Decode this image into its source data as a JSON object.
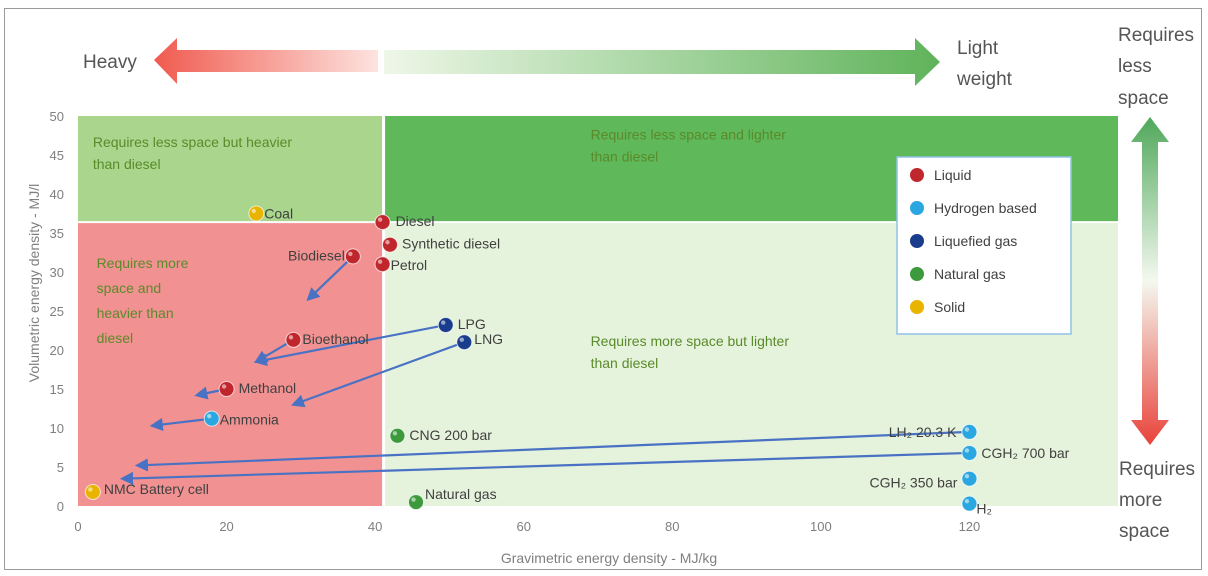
{
  "chart_data": {
    "type": "scatter",
    "xlabel": "Gravimetric energy density - MJ/kg",
    "ylabel": "Volumetric energy density - MJ/l",
    "xlim": [
      0,
      140
    ],
    "ylim": [
      0,
      50
    ],
    "x_ticks": [
      "0",
      "20",
      "40",
      "60",
      "80",
      "100",
      "120"
    ],
    "y_ticks": [
      "0",
      "5",
      "10",
      "15",
      "20",
      "25",
      "30",
      "35",
      "40",
      "45",
      "50"
    ],
    "grid": false,
    "legend_position": "top-right",
    "legend": [
      {
        "name": "Liquid",
        "color": "#c0272d"
      },
      {
        "name": "Hydrogen based",
        "color": "#2aa6e0"
      },
      {
        "name": "Liquefied gas",
        "color": "#1a3c8c"
      },
      {
        "name": "Natural gas",
        "color": "#3c9a3c"
      },
      {
        "name": "Solid",
        "color": "#e8b400"
      }
    ],
    "regions": [
      {
        "label": "Requires less space but heavier than diesel",
        "lines": [
          "Requires less space but heavier",
          "than diesel"
        ],
        "x": [
          0,
          41
        ],
        "y": [
          36.4,
          50
        ],
        "color": "#a9d68c"
      },
      {
        "label": "Requires less space and lighter than diesel",
        "lines": [
          "Requires less space and lighter",
          "than diesel"
        ],
        "x": [
          41,
          140
        ],
        "y": [
          36.4,
          50
        ],
        "color": "#5fb85a"
      },
      {
        "label": "Requires more space and heavier than diesel",
        "lines": [
          "Requires more",
          "space and",
          "heavier than",
          "diesel"
        ],
        "x": [
          0,
          41
        ],
        "y": [
          0,
          36.4
        ],
        "color": "#f29191"
      },
      {
        "label": "Requires more space but lighter than diesel",
        "lines": [
          "Requires more space but lighter",
          "than diesel"
        ],
        "x": [
          41,
          140
        ],
        "y": [
          0,
          36.4
        ],
        "color": "#e6f3dc"
      }
    ],
    "points": [
      {
        "name": "Coal",
        "x": 24,
        "y": 37.5,
        "category": "Solid"
      },
      {
        "name": "Diesel",
        "x": 41,
        "y": 36.4,
        "category": "Liquid"
      },
      {
        "name": "Synthetic diesel",
        "x": 42,
        "y": 33.5,
        "category": "Liquid"
      },
      {
        "name": "Biodiesel",
        "x": 37,
        "y": 32,
        "category": "Liquid"
      },
      {
        "name": "Petrol",
        "x": 41,
        "y": 31,
        "category": "Liquid"
      },
      {
        "name": "LPG",
        "x": 49.5,
        "y": 23.2,
        "category": "Liquefied gas"
      },
      {
        "name": "LNG",
        "x": 52,
        "y": 21,
        "category": "Liquefied gas"
      },
      {
        "name": "Bioethanol",
        "x": 29,
        "y": 21.3,
        "category": "Liquid"
      },
      {
        "name": "Methanol",
        "x": 20,
        "y": 15,
        "category": "Liquid"
      },
      {
        "name": "Ammonia",
        "x": 18,
        "y": 11.2,
        "category": "Hydrogen based"
      },
      {
        "name": "CNG 200 bar",
        "x": 43,
        "y": 9,
        "category": "Natural gas"
      },
      {
        "name": "LH₂ 20.3 K",
        "x": 120,
        "y": 9.5,
        "category": "Hydrogen based"
      },
      {
        "name": "CGH₂ 700 bar",
        "x": 120,
        "y": 6.8,
        "category": "Hydrogen based"
      },
      {
        "name": "CGH₂ 350 bar",
        "x": 120,
        "y": 3.5,
        "category": "Hydrogen based"
      },
      {
        "name": "H₂",
        "x": 120,
        "y": 0.3,
        "category": "Hydrogen based"
      },
      {
        "name": "Natural gas",
        "x": 45.5,
        "y": 0.5,
        "category": "Natural gas"
      },
      {
        "name": "NMC Battery cell",
        "x": 2,
        "y": 1.8,
        "category": "Solid"
      }
    ],
    "arrows": [
      {
        "from": [
          37,
          32
        ],
        "to": [
          31,
          26.5
        ]
      },
      {
        "from": [
          29,
          21.3
        ],
        "to": [
          24,
          18.5
        ]
      },
      {
        "from": [
          20,
          15
        ],
        "to": [
          16,
          14.2
        ]
      },
      {
        "from": [
          18,
          11.2
        ],
        "to": [
          10,
          10.3
        ]
      },
      {
        "from": [
          49.5,
          23.2
        ],
        "to": [
          24,
          18.5
        ]
      },
      {
        "from": [
          52,
          21
        ],
        "to": [
          29,
          13
        ]
      },
      {
        "from": [
          120,
          9.5
        ],
        "to": [
          8,
          5.2
        ]
      },
      {
        "from": [
          120,
          6.8
        ],
        "to": [
          6,
          3.5
        ]
      }
    ],
    "top_arrow": {
      "left": "Heavy",
      "right_lines": [
        "Light",
        "weight"
      ]
    },
    "side_arrow": {
      "top_lines": [
        "Requires",
        "less",
        "space"
      ],
      "bottom_lines": [
        "Requires",
        "more",
        "space"
      ]
    }
  }
}
